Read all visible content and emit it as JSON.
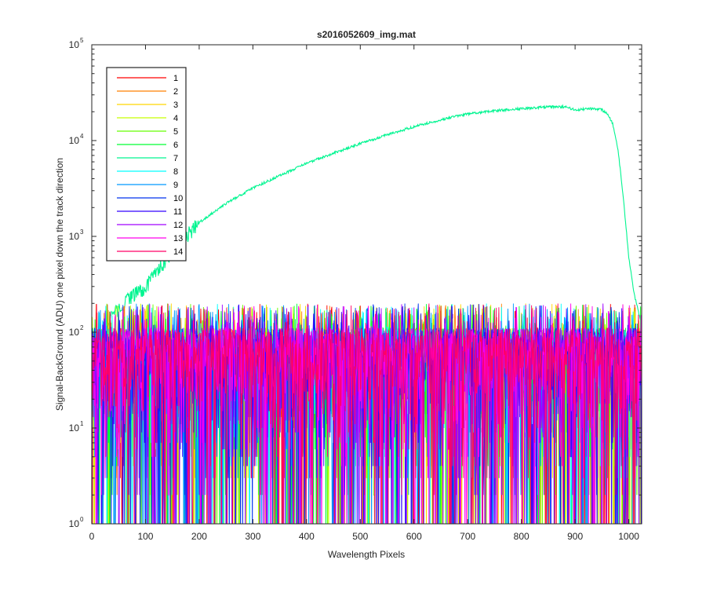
{
  "chart_data": {
    "type": "line",
    "title": "s2016052609_img.mat",
    "xlabel": "Wavelength Pixels",
    "ylabel": "Signal-BackGround (ADU) one pixel down the track direction",
    "xlim": [
      0,
      1024
    ],
    "ylim": [
      1,
      100000
    ],
    "yscale": "log",
    "x_ticks": [
      0,
      100,
      200,
      300,
      400,
      500,
      600,
      700,
      800,
      900,
      1000
    ],
    "y_ticks": [
      {
        "base": "10",
        "exp": "0",
        "value": 1
      },
      {
        "base": "10",
        "exp": "1",
        "value": 10
      },
      {
        "base": "10",
        "exp": "2",
        "value": 100
      },
      {
        "base": "10",
        "exp": "3",
        "value": 1000
      },
      {
        "base": "10",
        "exp": "4",
        "value": 10000
      },
      {
        "base": "10",
        "exp": "5",
        "value": 100000
      }
    ],
    "grid": false,
    "legend_position": "top-left",
    "x_range": [
      0,
      1024
    ],
    "series": [
      {
        "name": "1",
        "color": "#ff0000",
        "noise_level": 60
      },
      {
        "name": "2",
        "color": "#ff7f00",
        "noise_level": 60
      },
      {
        "name": "3",
        "color": "#ffd500",
        "noise_level": 60
      },
      {
        "name": "4",
        "color": "#c8ff00",
        "noise_level": 60
      },
      {
        "name": "5",
        "color": "#66ff00",
        "noise_level": 60
      },
      {
        "name": "6",
        "color": "#00ff33",
        "noise_level": 60
      },
      {
        "name": "7",
        "color": "#00f590",
        "profile_x": [
          0,
          20,
          50,
          80,
          100,
          150,
          200,
          250,
          300,
          350,
          400,
          450,
          500,
          550,
          600,
          650,
          700,
          750,
          800,
          850,
          880,
          900,
          930,
          950,
          960,
          970,
          980,
          990,
          1000,
          1010,
          1024
        ],
        "profile_y": [
          70,
          100,
          180,
          250,
          300,
          700,
          1400,
          2200,
          3200,
          4300,
          5800,
          7400,
          9300,
          11500,
          14000,
          16500,
          19000,
          20500,
          21500,
          22500,
          22500,
          21000,
          21500,
          21000,
          19000,
          15000,
          8000,
          2500,
          600,
          250,
          120
        ]
      },
      {
        "name": "8",
        "color": "#00ffff",
        "noise_level": 60
      },
      {
        "name": "9",
        "color": "#0099ff",
        "noise_level": 60
      },
      {
        "name": "10",
        "color": "#0033ee",
        "noise_level": 60
      },
      {
        "name": "11",
        "color": "#3300ff",
        "noise_level": 60
      },
      {
        "name": "12",
        "color": "#a000ff",
        "noise_level": 60
      },
      {
        "name": "13",
        "color": "#ff00ee",
        "noise_level": 60
      },
      {
        "name": "14",
        "color": "#ff0066",
        "noise_level": 60
      }
    ]
  }
}
